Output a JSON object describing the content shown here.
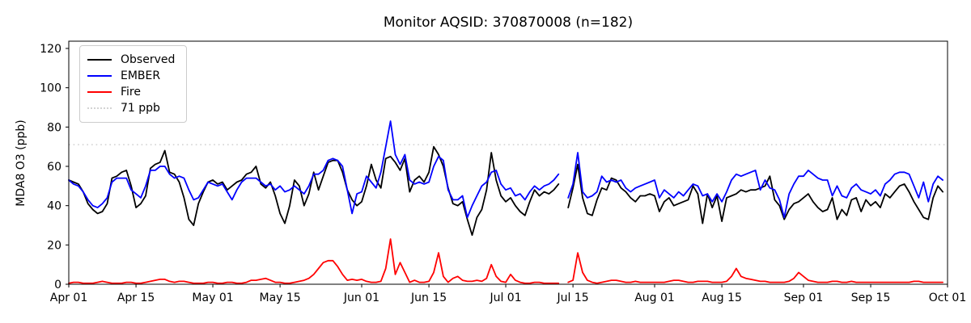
{
  "chart_data": {
    "type": "line",
    "title": "Monitor AQSID: 370870008 (n=182)",
    "ylabel": "MDA8 O3 (ppb)",
    "ylim": [
      0,
      124
    ],
    "yticks": [
      0,
      20,
      40,
      60,
      80,
      100,
      120
    ],
    "x_axis": {
      "total_days": 183,
      "tick_days": [
        0,
        14,
        30,
        44,
        61,
        75,
        91,
        105,
        122,
        136,
        153,
        167,
        183
      ],
      "tick_labels": [
        "Apr 01",
        "Apr 15",
        "May 01",
        "May 15",
        "Jun 01",
        "Jun 15",
        "Jul 01",
        "Jul 15",
        "Aug 01",
        "Aug 15",
        "Sep 01",
        "Sep 15",
        "Oct 01"
      ]
    },
    "threshold": {
      "value": 71,
      "label": "71 ppb",
      "color": "#d3d3d3",
      "style": "dotted"
    },
    "legend": {
      "position": "upper-left",
      "entries": [
        "Observed",
        "EMBER",
        "Fire",
        "71 ppb"
      ]
    },
    "series": [
      {
        "name": "Observed",
        "color": "#000000",
        "values": [
          53,
          52,
          51,
          47,
          41,
          38,
          36,
          37,
          41,
          54,
          55,
          57,
          58,
          50,
          39,
          41,
          45,
          59,
          61,
          62,
          68,
          57,
          56,
          52,
          44,
          33,
          30,
          41,
          47,
          52,
          53,
          51,
          52,
          48,
          50,
          52,
          53,
          56,
          57,
          60,
          51,
          49,
          52,
          45,
          36,
          31,
          40,
          53,
          50,
          40,
          46,
          57,
          48,
          55,
          62,
          63,
          63,
          57,
          48,
          43,
          40,
          42,
          50,
          61,
          53,
          49,
          64,
          65,
          62,
          58,
          64,
          47,
          53,
          55,
          52,
          57,
          70,
          66,
          60,
          49,
          41,
          40,
          42,
          33,
          25,
          34,
          38,
          48,
          67,
          53,
          45,
          42,
          44,
          40,
          37,
          35,
          42,
          48,
          45,
          47,
          46,
          48,
          51,
          null,
          39,
          49,
          61,
          44,
          36,
          35,
          43,
          49,
          48,
          54,
          53,
          49,
          47,
          44,
          42,
          45,
          45,
          46,
          45,
          37,
          42,
          44,
          40,
          41,
          42,
          43,
          50,
          46,
          31,
          46,
          39,
          45,
          32,
          44,
          45,
          46,
          48,
          47,
          48,
          48,
          49,
          50,
          55,
          43,
          40,
          33,
          38,
          41,
          42,
          44,
          46,
          42,
          39,
          37,
          38,
          44,
          33,
          38,
          35,
          43,
          44,
          37,
          43,
          40,
          42,
          39,
          46,
          44,
          47,
          50,
          51,
          47,
          42,
          38,
          34,
          33,
          44,
          50,
          47
        ]
      },
      {
        "name": "EMBER",
        "color": "#0000ff",
        "values": [
          53,
          51,
          50,
          47,
          43,
          40,
          39,
          41,
          44,
          52,
          54,
          54,
          54,
          48,
          46,
          44,
          50,
          58,
          58,
          60,
          60,
          56,
          54,
          55,
          54,
          48,
          43,
          44,
          48,
          52,
          51,
          50,
          51,
          47,
          43,
          48,
          52,
          54,
          54,
          54,
          52,
          50,
          51,
          48,
          50,
          47,
          48,
          50,
          48,
          46,
          50,
          56,
          56,
          58,
          63,
          64,
          63,
          60,
          48,
          36,
          46,
          47,
          55,
          52,
          49,
          57,
          70,
          83,
          66,
          61,
          66,
          53,
          51,
          52,
          51,
          52,
          60,
          65,
          63,
          48,
          43,
          43,
          45,
          34,
          40,
          45,
          50,
          52,
          57,
          58,
          51,
          48,
          49,
          45,
          46,
          43,
          47,
          50,
          48,
          50,
          51,
          53,
          56,
          null,
          44,
          51,
          67,
          47,
          44,
          45,
          47,
          55,
          52,
          53,
          52,
          53,
          49,
          47,
          49,
          50,
          51,
          52,
          53,
          44,
          48,
          46,
          44,
          47,
          45,
          48,
          51,
          50,
          45,
          46,
          42,
          46,
          42,
          47,
          53,
          56,
          55,
          56,
          57,
          58,
          48,
          53,
          49,
          48,
          43,
          34,
          46,
          51,
          55,
          55,
          58,
          56,
          54,
          53,
          53,
          45,
          50,
          45,
          44,
          49,
          51,
          48,
          47,
          46,
          48,
          45,
          51,
          53,
          56,
          57,
          57,
          56,
          50,
          44,
          52,
          42,
          51,
          55,
          53
        ]
      },
      {
        "name": "Fire",
        "color": "#ff0000",
        "values": [
          0.5,
          1,
          1,
          0.5,
          0.5,
          0.5,
          1,
          1.5,
          1,
          0.5,
          0.5,
          0.5,
          1,
          1,
          0.5,
          0.5,
          1,
          1.5,
          2,
          2.5,
          2.5,
          1.5,
          1,
          1.5,
          1.5,
          1,
          0.5,
          0.5,
          0.5,
          1,
          1,
          0.5,
          0.5,
          1,
          1,
          0.5,
          0.5,
          1,
          2,
          2,
          2.5,
          3,
          2,
          1,
          1,
          0.5,
          0.5,
          1,
          1.5,
          2,
          3,
          5,
          8,
          11,
          12,
          12,
          9,
          5,
          2,
          2.5,
          2,
          2.5,
          1.5,
          1,
          1,
          1.5,
          8,
          23,
          5,
          11,
          6,
          1,
          2,
          1,
          1,
          1.5,
          6,
          16,
          4,
          1,
          3,
          4,
          2,
          1.5,
          1.5,
          2,
          1.5,
          3,
          10,
          4,
          1.5,
          1,
          5,
          2,
          1,
          0.5,
          0.5,
          1,
          1,
          0.5,
          0.5,
          0.5,
          0.5,
          null,
          1,
          2,
          16,
          6,
          2,
          1,
          0.5,
          1,
          1.5,
          2,
          2,
          1.5,
          1,
          1,
          1.5,
          1,
          1,
          1,
          1,
          1,
          1,
          1.5,
          2,
          2,
          1.5,
          1,
          1,
          1.5,
          1.5,
          1.5,
          1,
          1,
          1,
          1.5,
          4,
          8,
          4,
          3,
          2.5,
          2,
          1.5,
          1.5,
          1,
          1,
          1,
          1,
          1.5,
          3,
          6,
          4,
          2,
          1.5,
          1,
          1,
          1,
          1.5,
          1.5,
          1,
          1,
          1.5,
          1,
          1,
          1,
          1,
          1,
          1,
          1,
          1,
          1,
          1,
          1,
          1,
          1.5,
          1.5,
          1,
          1,
          1,
          1,
          1
        ]
      }
    ],
    "spine_color": "#000000"
  }
}
